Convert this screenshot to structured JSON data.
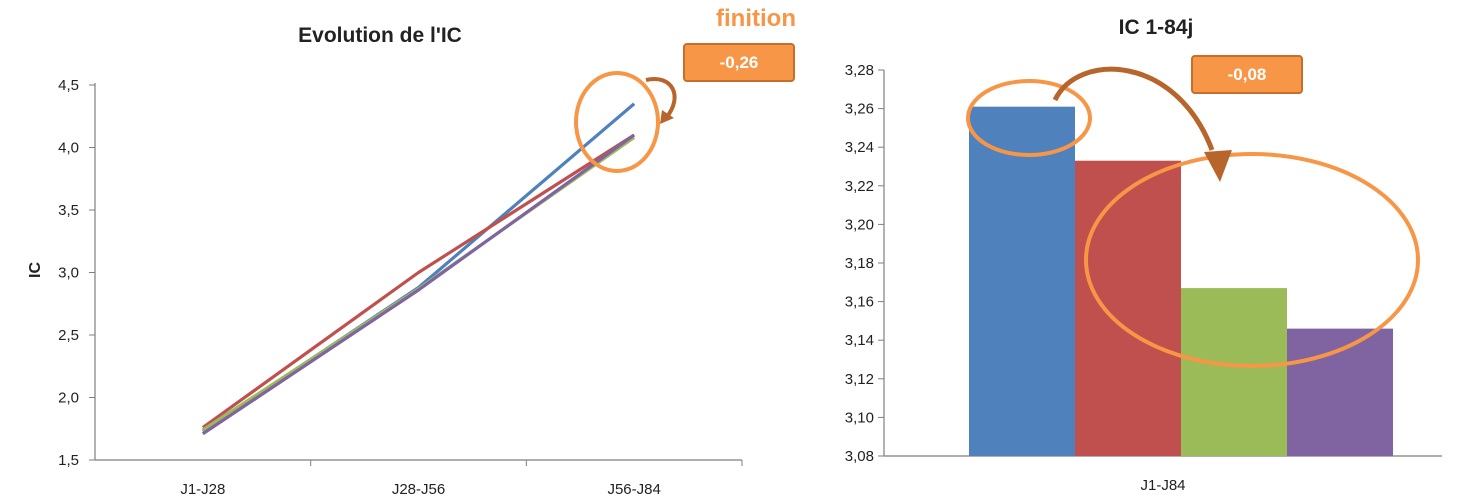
{
  "colors": {
    "blue": "#4f81bd",
    "red": "#c0504d",
    "green": "#9bbb59",
    "purple": "#8064a2",
    "orange": "#f79646",
    "arrow": "#b8652b",
    "axis": "#7f7f7f"
  },
  "annotations": {
    "finition_label": "finition",
    "line_callout": "-0,26",
    "bar_callout": "-0,08"
  },
  "chart_data": [
    {
      "type": "line",
      "title": "Evolution de l'IC",
      "xlabel": "",
      "ylabel": "IC",
      "categories": [
        "J1-J28",
        "J28-J56",
        "J56-J84"
      ],
      "ylim": [
        1.5,
        4.5
      ],
      "yticks": [
        "1,5",
        "2,0",
        "2,5",
        "3,0",
        "3,5",
        "4,0",
        "4,5"
      ],
      "legend": "none",
      "grid": false,
      "series": [
        {
          "color": "blue",
          "values": [
            1.73,
            2.88,
            4.35
          ]
        },
        {
          "color": "red",
          "values": [
            1.76,
            3.0,
            4.1
          ]
        },
        {
          "color": "green",
          "values": [
            1.74,
            2.87,
            4.08
          ]
        },
        {
          "color": "purple",
          "values": [
            1.71,
            2.86,
            4.1
          ]
        }
      ]
    },
    {
      "type": "bar",
      "title": "IC 1-84j",
      "xlabel": "",
      "ylabel": "",
      "categories": [
        "J1-J84"
      ],
      "ylim": [
        3.08,
        3.28
      ],
      "yticks": [
        "3,08",
        "3,10",
        "3,12",
        "3,14",
        "3,16",
        "3,18",
        "3,20",
        "3,22",
        "3,24",
        "3,26",
        "3,28"
      ],
      "legend": "none",
      "grid": false,
      "series": [
        {
          "color": "blue",
          "values": [
            3.261
          ]
        },
        {
          "color": "red",
          "values": [
            3.233
          ]
        },
        {
          "color": "green",
          "values": [
            3.167
          ]
        },
        {
          "color": "purple",
          "values": [
            3.146
          ]
        }
      ]
    }
  ]
}
